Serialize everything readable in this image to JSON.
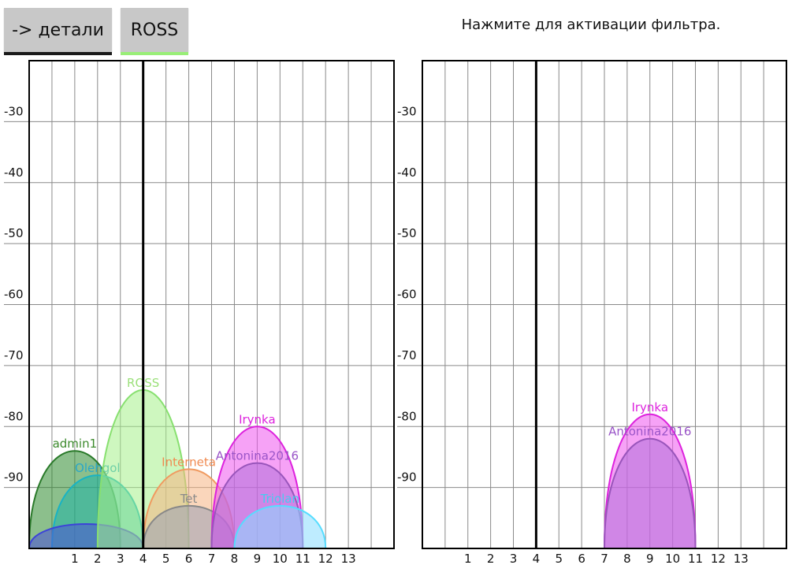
{
  "toolbar": {
    "details_label": "-> детали",
    "ross_label": "ROSS",
    "hint": "Нажмите для активации фильтра."
  },
  "colors": {
    "details_underline": "#1a1a1a",
    "ross_underline": "#99ee77"
  },
  "chart_data": [
    {
      "type": "area",
      "title": "",
      "x_ticks": [
        "1",
        "2",
        "3",
        "4",
        "5",
        "6",
        "7",
        "8",
        "9",
        "10",
        "11",
        "12",
        "13"
      ],
      "y_ticks": [
        "-30",
        "-40",
        "-50",
        "-60",
        "-70",
        "-80",
        "-90"
      ],
      "xlim": [
        -1,
        15
      ],
      "ylim": [
        -100,
        -20
      ],
      "selected_channel": 4,
      "grid": true,
      "series": [
        {
          "name": "admin1",
          "center": 1,
          "low": -1,
          "high": 3,
          "peak": -84,
          "fill": "#2e8b2e",
          "stroke": "#2a7a2a",
          "label_color": "#3c8a2c"
        },
        {
          "name": "Olehgol",
          "center": 2,
          "low": 0,
          "high": 4,
          "peak": -88,
          "fill": "#1fb5a6",
          "stroke": "#19b3c4",
          "label_color": "#2aa7c8"
        },
        {
          "name": "",
          "center": 2,
          "low": -1,
          "high": 4,
          "peak": -96,
          "fill": "#4a50d8",
          "stroke": "#3c43d8",
          "label_color": "#3c43d8"
        },
        {
          "name": "ROSS",
          "center": 4,
          "low": 2,
          "high": 6,
          "peak": -74,
          "fill": "#a6f08a",
          "stroke": "#88e070",
          "label_color": "#9be07a"
        },
        {
          "name": "Interneta",
          "center": 6,
          "low": 4,
          "high": 8,
          "peak": -87,
          "fill": "#f5b483",
          "stroke": "#f09a60",
          "label_color": "#f08a50"
        },
        {
          "name": "Tet",
          "center": 6,
          "low": 4,
          "high": 8,
          "peak": -93,
          "fill": "#9aa0b4",
          "stroke": "#888888",
          "label_color": "#8a8a8a"
        },
        {
          "name": "Irynka",
          "center": 9,
          "low": 7,
          "high": 11,
          "peak": -80,
          "fill": "#ee55ee",
          "stroke": "#dd22dd",
          "label_color": "#dd22dd"
        },
        {
          "name": "Antonina2016",
          "center": 9,
          "low": 7,
          "high": 11,
          "peak": -86,
          "fill": "#b070d8",
          "stroke": "#9955bb",
          "label_color": "#9a55c8"
        },
        {
          "name": "Triolan",
          "center": 10,
          "low": 8,
          "high": 12,
          "peak": -93,
          "fill": "#88ddff",
          "stroke": "#55ddff",
          "label_color": "#44ccf0"
        }
      ]
    },
    {
      "type": "area",
      "title": "",
      "x_ticks": [
        "1",
        "2",
        "3",
        "4",
        "5",
        "6",
        "7",
        "8",
        "9",
        "10",
        "11",
        "12",
        "13"
      ],
      "y_ticks": [
        "-30",
        "-40",
        "-50",
        "-60",
        "-70",
        "-80",
        "-90"
      ],
      "xlim": [
        -1,
        15
      ],
      "ylim": [
        -100,
        -20
      ],
      "selected_channel": 4,
      "grid": true,
      "series": [
        {
          "name": "Irynka",
          "center": 9,
          "low": 7,
          "high": 11,
          "peak": -78,
          "fill": "#ee55ee",
          "stroke": "#dd22dd",
          "label_color": "#dd22dd"
        },
        {
          "name": "Antonina2016",
          "center": 9,
          "low": 7,
          "high": 11,
          "peak": -82,
          "fill": "#b070d8",
          "stroke": "#9955bb",
          "label_color": "#9a55c8"
        }
      ]
    }
  ]
}
